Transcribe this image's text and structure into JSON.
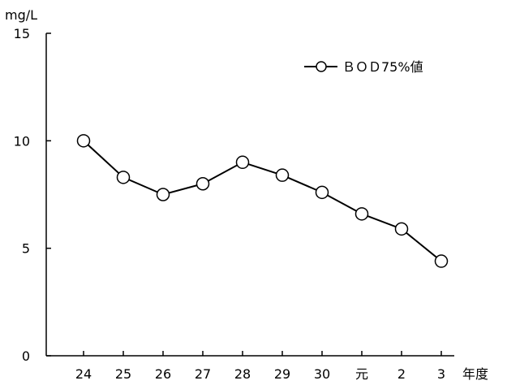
{
  "chart_data": {
    "type": "line",
    "title": "",
    "ylabel": "mg/L",
    "xlabel": "年度",
    "ylim": [
      0,
      15
    ],
    "yticks": [
      0,
      5,
      10,
      15
    ],
    "categories": [
      "24",
      "25",
      "26",
      "27",
      "28",
      "29",
      "30",
      "元",
      "2",
      "3"
    ],
    "series": [
      {
        "name": "ＢＯＤ75%値",
        "values": [
          10.0,
          8.3,
          7.5,
          8.0,
          9.0,
          8.4,
          7.6,
          6.6,
          5.9,
          4.4
        ]
      }
    ],
    "legend_position": "top-right",
    "grid": false,
    "colors": {
      "line": "#000000",
      "marker_fill": "#ffffff",
      "axis": "#000000"
    }
  }
}
